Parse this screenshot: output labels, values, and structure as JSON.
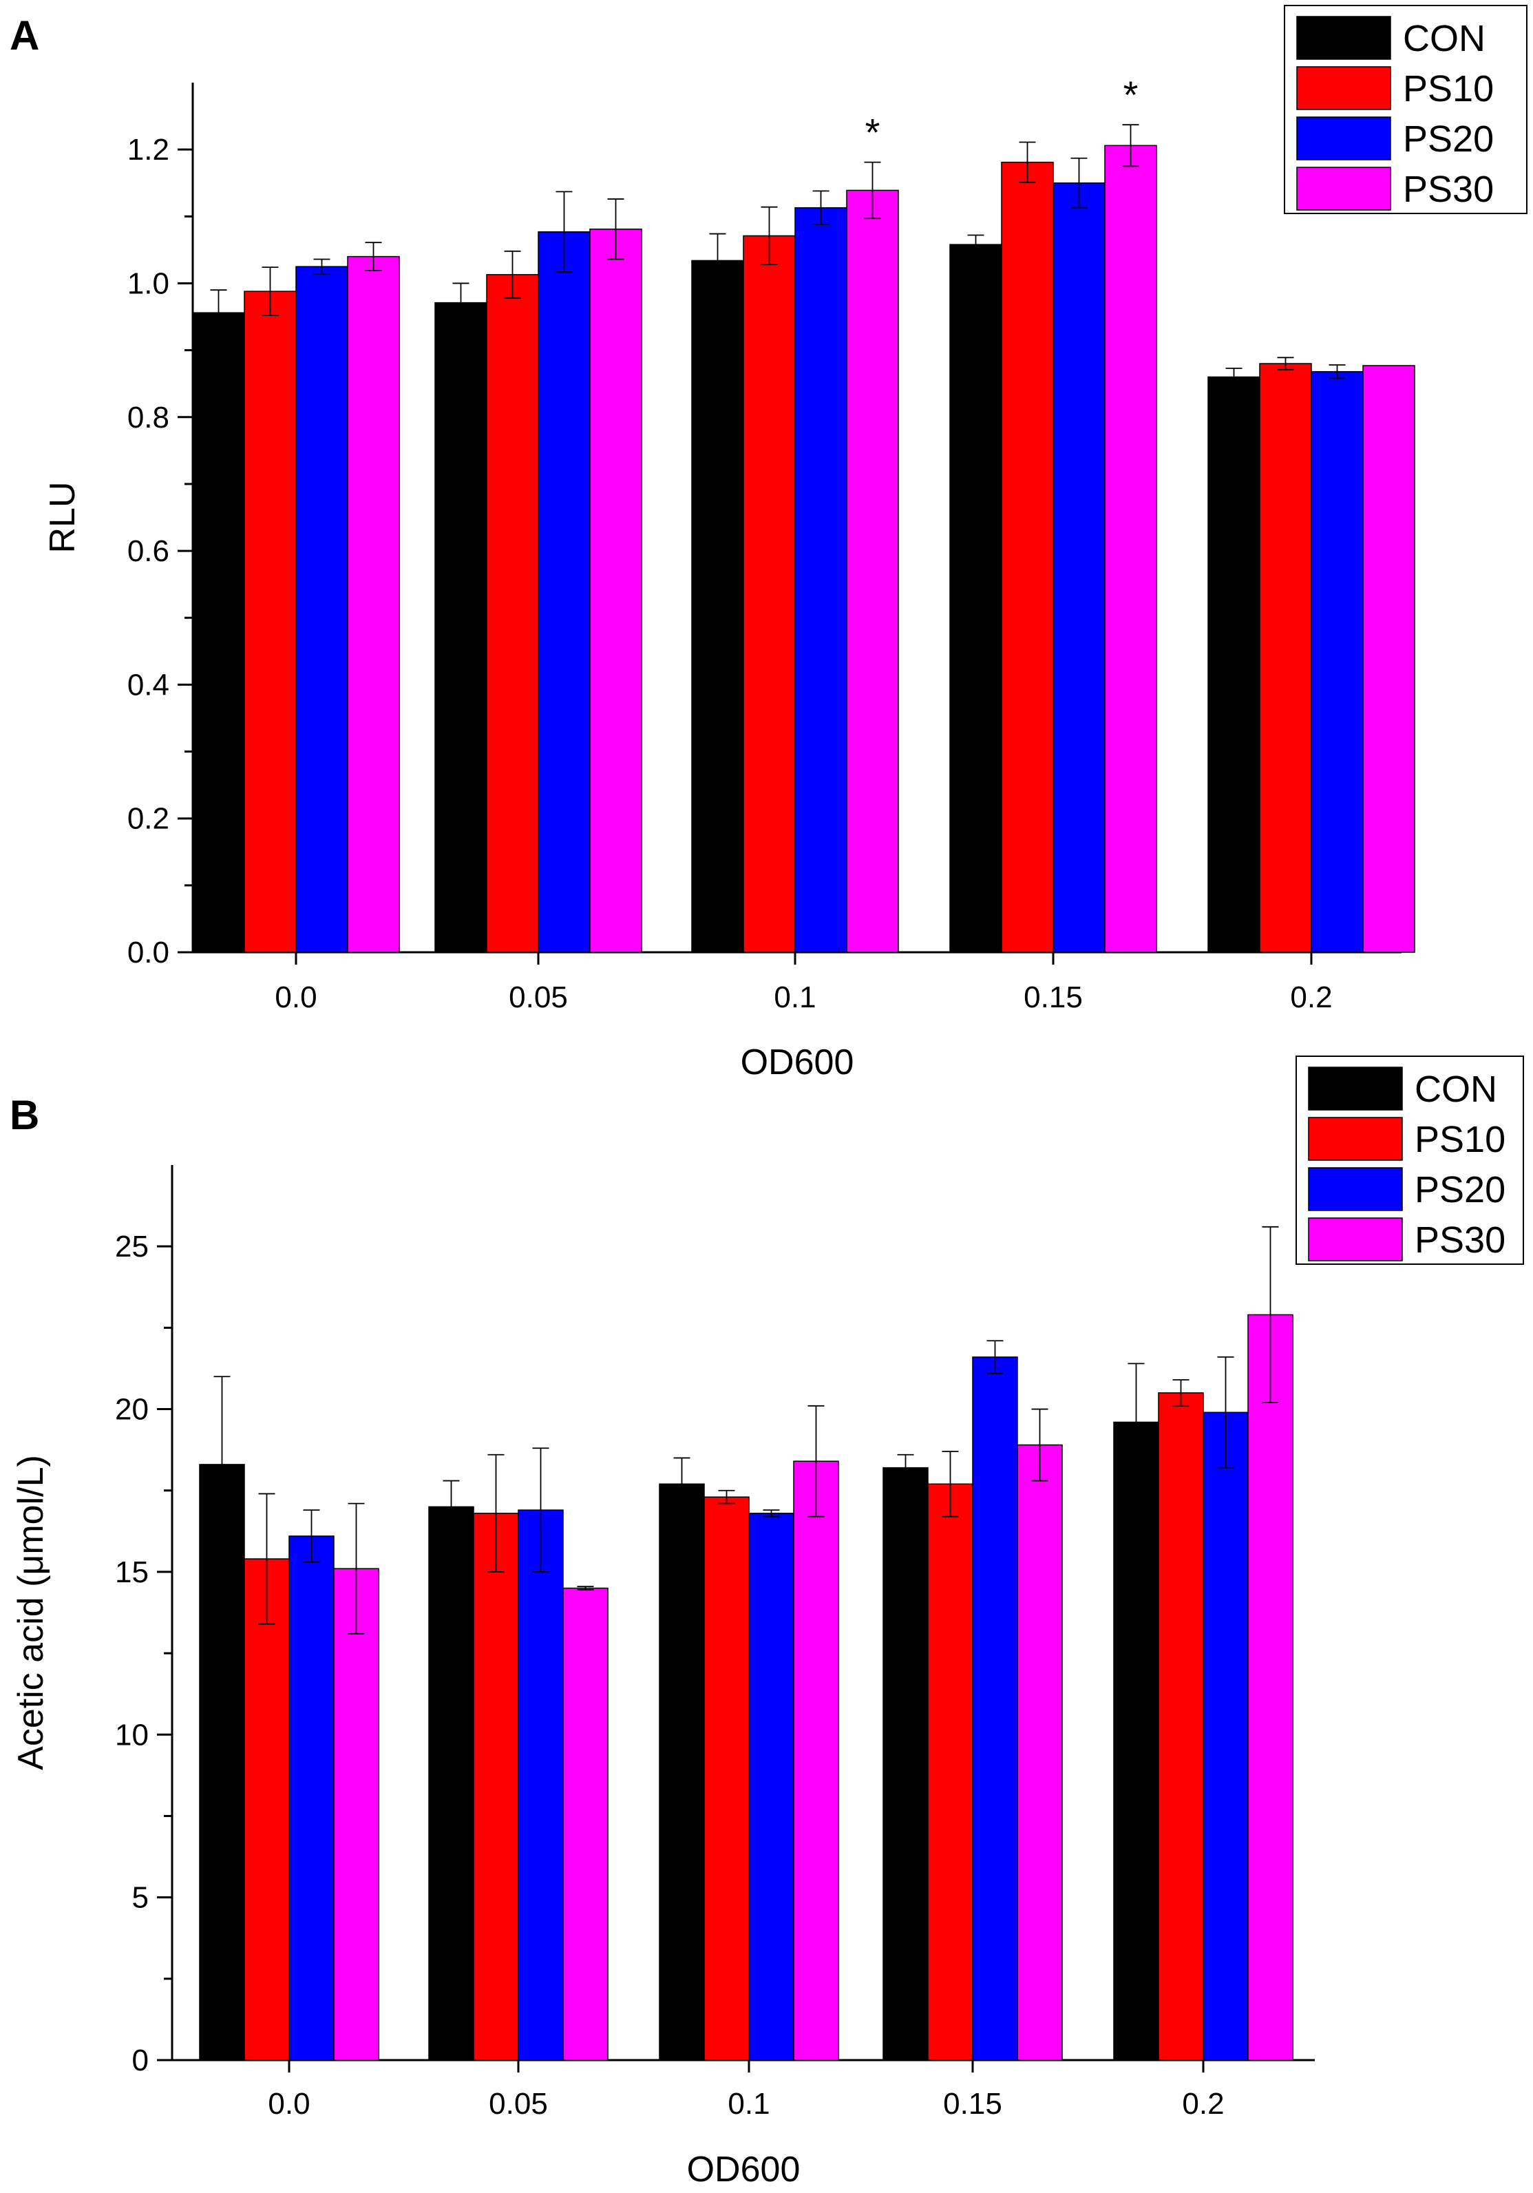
{
  "chart_data": [
    {
      "type": "bar",
      "panel": "A",
      "title": "",
      "xlabel": "OD600",
      "ylabel": "RLU",
      "ylim": [
        0,
        1.3
      ],
      "yticks": [
        "0.0",
        "0.2",
        "0.4",
        "0.6",
        "0.8",
        "1.0",
        "1.2"
      ],
      "categories": [
        "0.0",
        "0.05",
        "0.1",
        "0.15",
        "0.2"
      ],
      "series": [
        {
          "name": "CON",
          "color": "#000000",
          "values": [
            0.956,
            0.971,
            1.034,
            1.058,
            0.86
          ],
          "errors": [
            0.034,
            0.029,
            0.04,
            0.014,
            0.013
          ]
        },
        {
          "name": "PS10",
          "color": "#ff0000",
          "values": [
            0.988,
            1.013,
            1.071,
            1.181,
            0.88
          ],
          "errors": [
            0.036,
            0.035,
            0.043,
            0.03,
            0.009
          ]
        },
        {
          "name": "PS20",
          "color": "#0000ff",
          "values": [
            1.025,
            1.077,
            1.113,
            1.15,
            0.868
          ],
          "errors": [
            0.011,
            0.06,
            0.025,
            0.037,
            0.01
          ]
        },
        {
          "name": "PS30",
          "color": "#ff00ff",
          "values": [
            1.04,
            1.081,
            1.139,
            1.206,
            0.877
          ],
          "errors": [
            0.021,
            0.045,
            0.042,
            0.031,
            0.0
          ]
        }
      ],
      "annotations": [
        {
          "text": "*",
          "category": "0.1",
          "series": "PS30"
        },
        {
          "text": "*",
          "category": "0.15",
          "series": "PS30"
        }
      ],
      "legend": "top-right"
    },
    {
      "type": "bar",
      "panel": "B",
      "title": "",
      "xlabel": "OD600",
      "ylabel": "Acetic acid (μmol/L)",
      "ylim": [
        0,
        27.5
      ],
      "yticks": [
        "0",
        "5",
        "10",
        "15",
        "20",
        "25"
      ],
      "categories": [
        "0.0",
        "0.05",
        "0.1",
        "0.15",
        "0.2"
      ],
      "series": [
        {
          "name": "CON",
          "color": "#000000",
          "values": [
            18.3,
            17.0,
            17.7,
            18.2,
            19.6
          ],
          "errors": [
            2.7,
            0.8,
            0.8,
            0.4,
            1.8
          ]
        },
        {
          "name": "PS10",
          "color": "#ff0000",
          "values": [
            15.4,
            16.8,
            17.3,
            17.7,
            20.5
          ],
          "errors": [
            2.0,
            1.8,
            0.2,
            1.0,
            0.4
          ]
        },
        {
          "name": "PS20",
          "color": "#0000ff",
          "values": [
            16.1,
            16.9,
            16.8,
            21.6,
            19.9
          ],
          "errors": [
            0.8,
            1.9,
            0.1,
            0.5,
            1.7
          ]
        },
        {
          "name": "PS30",
          "color": "#ff00ff",
          "values": [
            15.1,
            14.5,
            18.4,
            18.9,
            22.9
          ],
          "errors": [
            2.0,
            0.05,
            1.7,
            1.1,
            2.7
          ]
        }
      ],
      "legend": "top-right"
    }
  ]
}
